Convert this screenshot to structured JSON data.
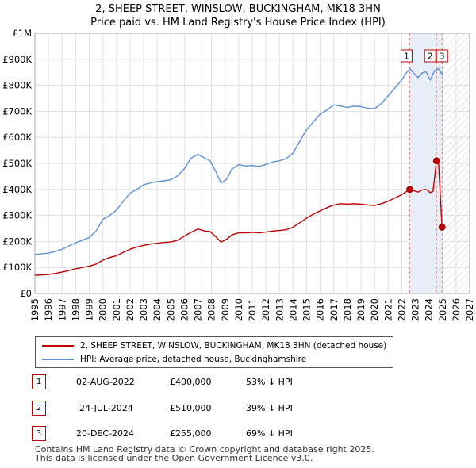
{
  "header": {
    "title_line1": "2, SHEEP STREET, WINSLOW, BUCKINGHAM, MK18 3HN",
    "title_line2": "Price paid vs. HM Land Registry's House Price Index (HPI)"
  },
  "colors": {
    "property_line": "#c00000",
    "hpi_line": "#5b8fd6",
    "shade": "#e8eef8",
    "vline": "#e08080"
  },
  "legend": {
    "property_label": "2, SHEEP STREET, WINSLOW, BUCKINGHAM, MK18 3HN (detached house)",
    "hpi_label": "HPI: Average price, detached house, Buckinghamshire"
  },
  "sales": [
    {
      "num": "1",
      "date": "02-AUG-2022",
      "price": "£400,000",
      "pct": "53% ↓ HPI"
    },
    {
      "num": "2",
      "date": "24-JUL-2024",
      "price": "£510,000",
      "pct": "39% ↓ HPI"
    },
    {
      "num": "3",
      "date": "20-DEC-2024",
      "price": "£255,000",
      "pct": "69% ↓ HPI"
    }
  ],
  "footer": {
    "line1": "Contains HM Land Registry data © Crown copyright and database right 2025.",
    "line2": "This data is licensed under the Open Government Licence v3.0."
  },
  "chart_data": {
    "type": "line",
    "title": "2, SHEEP STREET, WINSLOW, BUCKINGHAM, MK18 3HN",
    "subtitle": "Price paid vs. HM Land Registry's House Price Index (HPI)",
    "xlim": [
      1995,
      2027
    ],
    "ylim": [
      0,
      1000000
    ],
    "x_ticks": [
      1995,
      1996,
      1997,
      1998,
      1999,
      2000,
      2001,
      2002,
      2003,
      2004,
      2005,
      2006,
      2007,
      2008,
      2009,
      2010,
      2011,
      2012,
      2013,
      2014,
      2015,
      2016,
      2017,
      2018,
      2019,
      2020,
      2021,
      2022,
      2023,
      2024,
      2025,
      2026,
      2027
    ],
    "y_ticks": [
      {
        "value": 0,
        "label": "£0"
      },
      {
        "value": 100000,
        "label": "£100K"
      },
      {
        "value": 200000,
        "label": "£200K"
      },
      {
        "value": 300000,
        "label": "£300K"
      },
      {
        "value": 400000,
        "label": "£400K"
      },
      {
        "value": 500000,
        "label": "£500K"
      },
      {
        "value": 600000,
        "label": "£600K"
      },
      {
        "value": 700000,
        "label": "£700K"
      },
      {
        "value": 800000,
        "label": "£800K"
      },
      {
        "value": 900000,
        "label": "£900K"
      },
      {
        "value": 1000000,
        "label": "£1M"
      }
    ],
    "series": [
      {
        "name": "HPI: Average price, detached house, Buckinghamshire",
        "x": [
          1995.0,
          1995.5,
          1996.0,
          1996.5,
          1997.0,
          1997.5,
          1998.0,
          1998.5,
          1999.0,
          1999.5,
          2000.0,
          2000.5,
          2001.0,
          2001.5,
          2002.0,
          2002.5,
          2003.0,
          2003.5,
          2004.0,
          2004.5,
          2005.0,
          2005.5,
          2006.0,
          2006.5,
          2007.0,
          2007.5,
          2007.9,
          2008.3,
          2008.7,
          2009.1,
          2009.5,
          2010.0,
          2010.5,
          2011.0,
          2011.5,
          2012.0,
          2012.5,
          2013.0,
          2013.5,
          2014.0,
          2014.5,
          2015.0,
          2015.5,
          2016.0,
          2016.5,
          2017.0,
          2017.5,
          2018.0,
          2018.5,
          2019.0,
          2019.5,
          2020.0,
          2020.5,
          2021.0,
          2021.5,
          2022.0,
          2022.3,
          2022.6,
          2022.9,
          2023.2,
          2023.5,
          2023.8,
          2024.1,
          2024.4,
          2024.7,
          2025.0
        ],
        "values": [
          150000,
          152000,
          155000,
          162000,
          170000,
          182000,
          195000,
          205000,
          215000,
          240000,
          285000,
          300000,
          320000,
          355000,
          385000,
          400000,
          418000,
          425000,
          430000,
          433000,
          437000,
          452000,
          480000,
          520000,
          535000,
          520000,
          510000,
          470000,
          425000,
          438000,
          478000,
          495000,
          490000,
          492000,
          488000,
          496000,
          505000,
          510000,
          518000,
          540000,
          585000,
          630000,
          660000,
          690000,
          705000,
          725000,
          720000,
          715000,
          720000,
          718000,
          712000,
          710000,
          730000,
          760000,
          790000,
          820000,
          845000,
          865000,
          845000,
          830000,
          848000,
          852000,
          820000,
          855000,
          865000,
          840000
        ]
      },
      {
        "name": "2, SHEEP STREET, WINSLOW, BUCKINGHAM, MK18 3HN (detached house)",
        "x": [
          1995.0,
          1995.5,
          1996.0,
          1996.5,
          1997.0,
          1997.5,
          1998.0,
          1998.5,
          1999.0,
          1999.5,
          2000.0,
          2000.5,
          2001.0,
          2001.5,
          2002.0,
          2002.5,
          2003.0,
          2003.5,
          2004.0,
          2004.5,
          2005.0,
          2005.5,
          2006.0,
          2006.5,
          2007.0,
          2007.5,
          2007.9,
          2008.3,
          2008.7,
          2009.1,
          2009.5,
          2010.0,
          2010.5,
          2011.0,
          2011.5,
          2012.0,
          2012.5,
          2013.0,
          2013.5,
          2014.0,
          2014.5,
          2015.0,
          2015.5,
          2016.0,
          2016.5,
          2017.0,
          2017.5,
          2018.0,
          2018.5,
          2019.0,
          2019.5,
          2020.0,
          2020.5,
          2021.0,
          2021.5,
          2022.0,
          2022.59,
          2022.9,
          2023.2,
          2023.5,
          2023.8,
          2024.1,
          2024.3,
          2024.56,
          2024.7,
          2024.97,
          2025.0
        ],
        "values": [
          70000,
          71000,
          73000,
          77000,
          82000,
          88000,
          95000,
          100000,
          105000,
          113000,
          128000,
          138000,
          145000,
          158000,
          170000,
          178000,
          185000,
          190000,
          193000,
          196000,
          198000,
          205000,
          220000,
          235000,
          248000,
          240000,
          238000,
          218000,
          198000,
          208000,
          225000,
          233000,
          233000,
          235000,
          233000,
          236000,
          240000,
          242000,
          245000,
          255000,
          272000,
          290000,
          305000,
          318000,
          330000,
          340000,
          345000,
          343000,
          345000,
          343000,
          340000,
          338000,
          345000,
          355000,
          367000,
          380000,
          400000,
          395000,
          390000,
          398000,
          400000,
          388000,
          392000,
          510000,
          512000,
          255000,
          255000
        ]
      }
    ],
    "sales": [
      {
        "label": "1",
        "date": 2022.59,
        "price": 400000
      },
      {
        "label": "2",
        "date": 2024.56,
        "price": 510000
      },
      {
        "label": "3",
        "date": 2024.97,
        "price": 255000
      }
    ],
    "shaded_range": [
      2022.59,
      2024.97
    ],
    "hatched_after": 2025.0,
    "grid": true
  }
}
